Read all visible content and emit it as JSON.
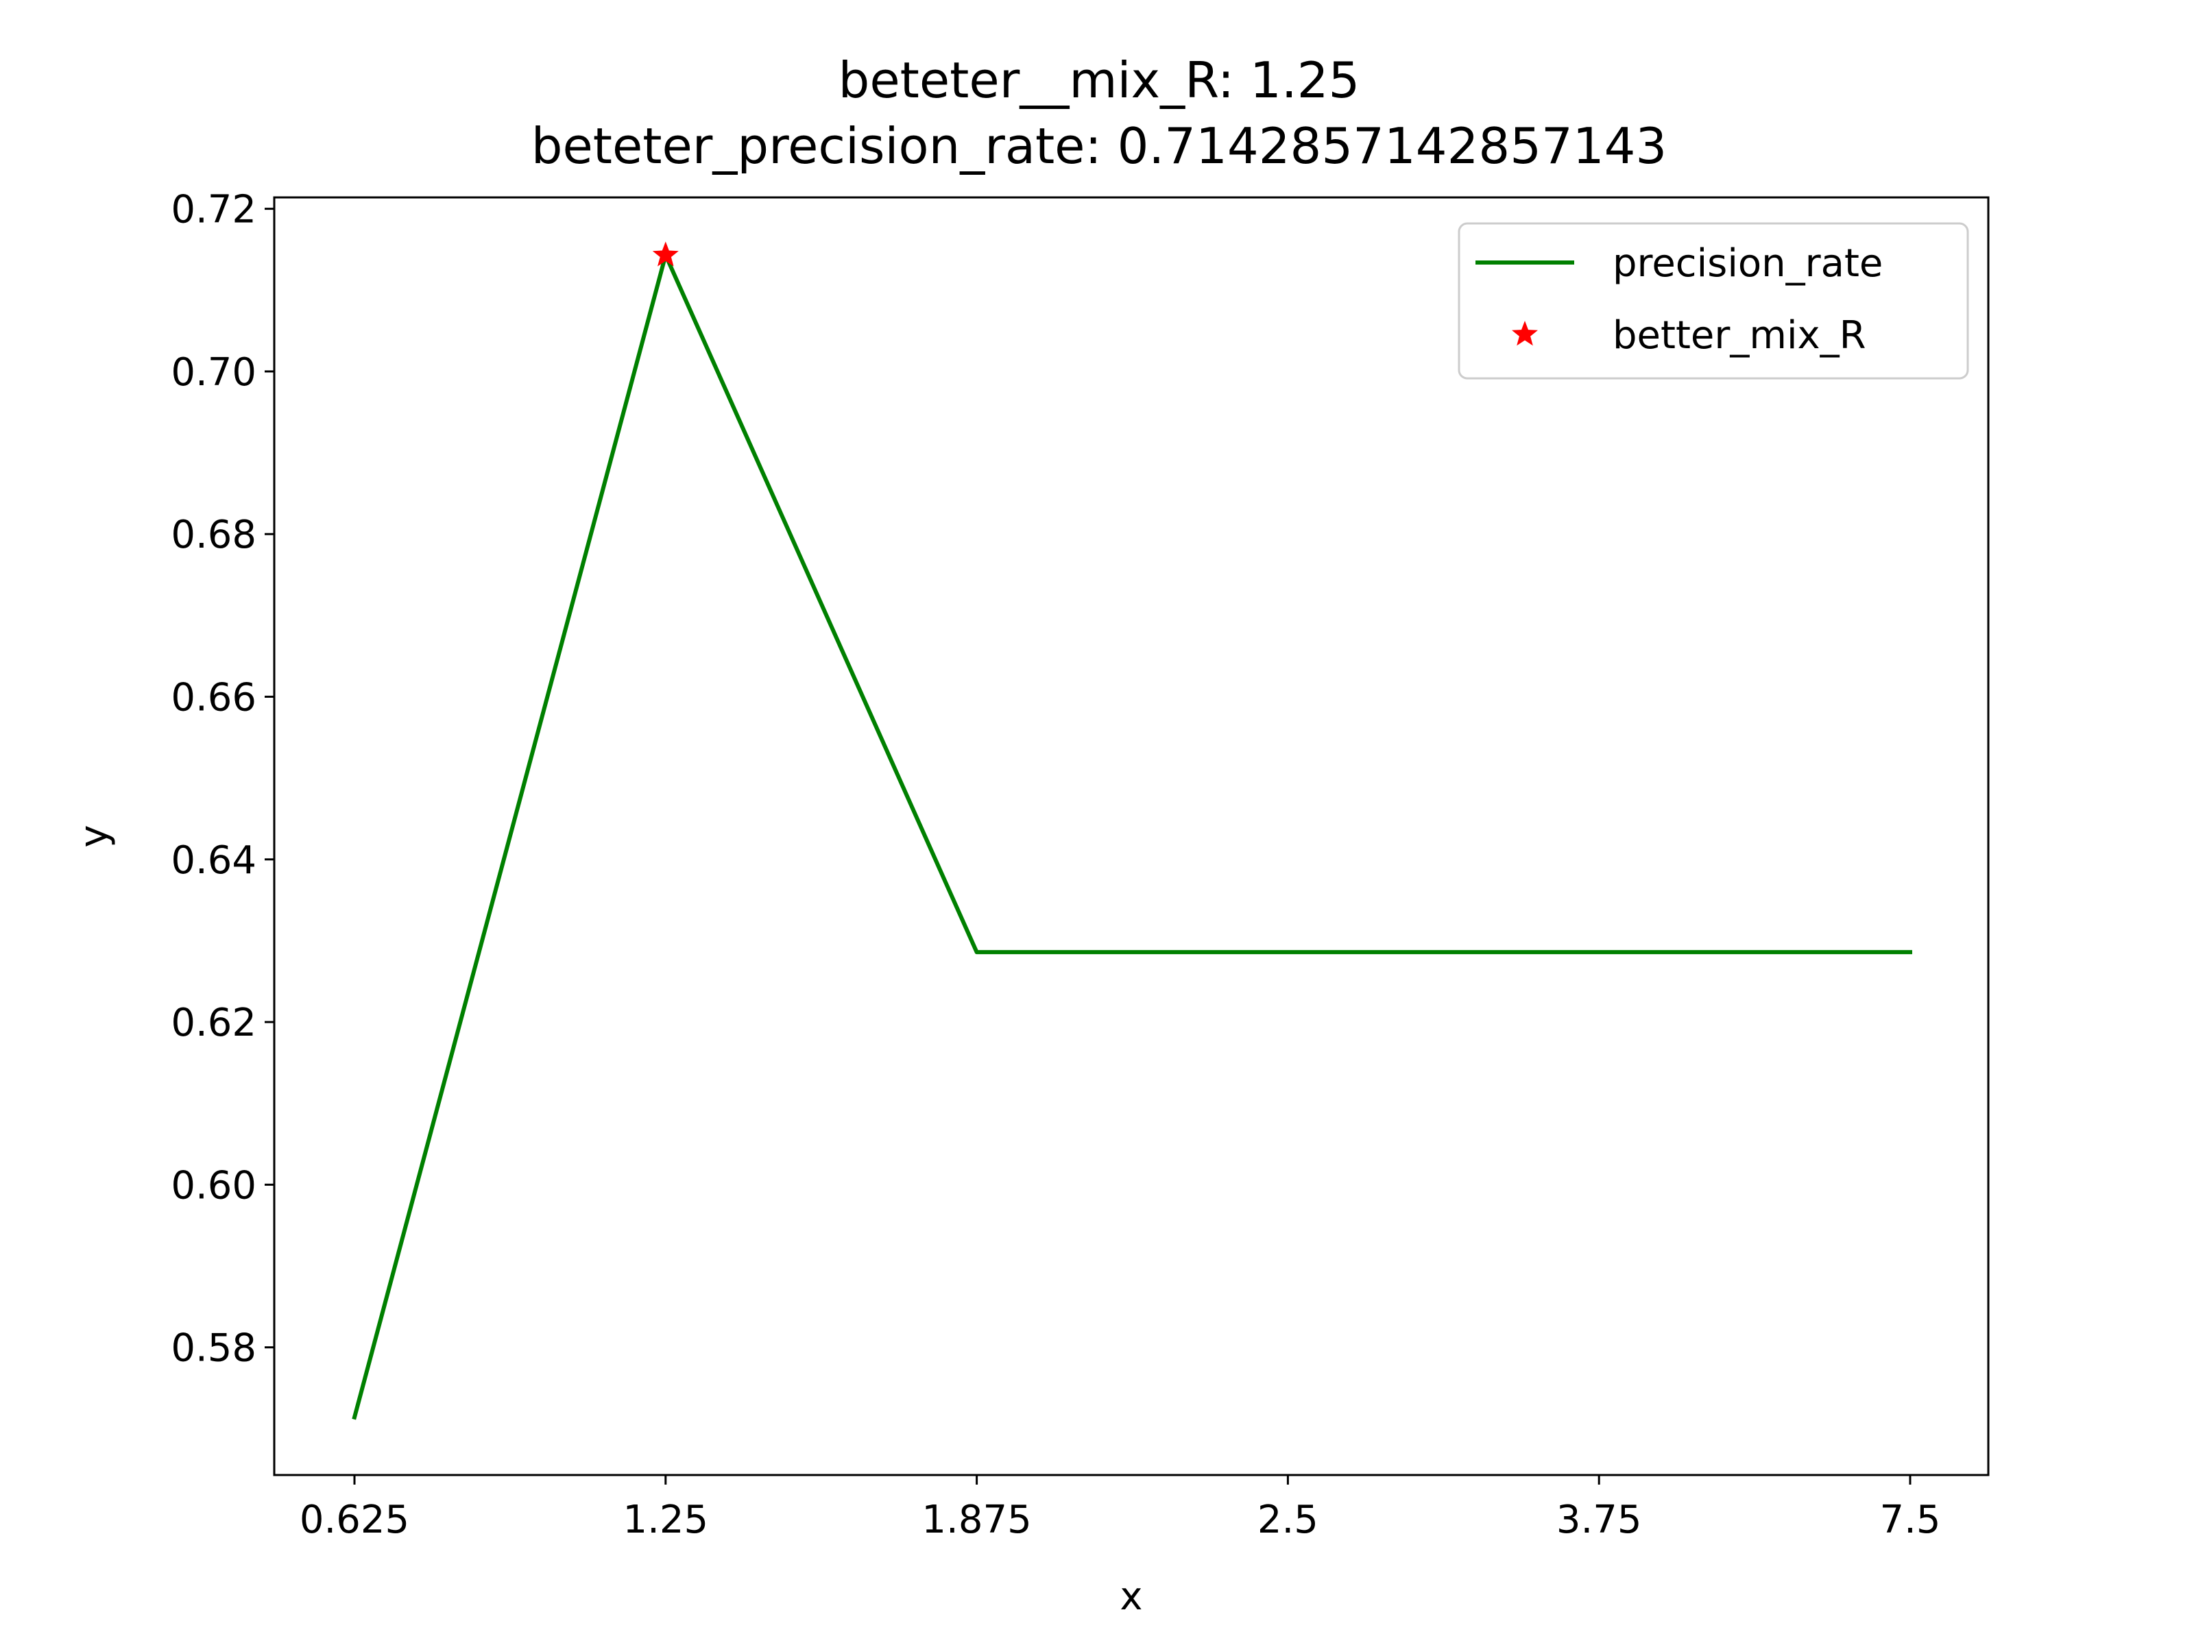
{
  "chart_data": {
    "type": "line",
    "title": "beteter__mix_R: 1.25",
    "subtitle": "beteter_precision_rate: 0.7142857142857143",
    "xlabel": "x",
    "ylabel": "y",
    "categories": [
      "0.625",
      "1.25",
      "1.875",
      "2.5",
      "3.75",
      "7.5"
    ],
    "series": [
      {
        "name": "precision_rate",
        "values": [
          0.5714,
          0.7143,
          0.6286,
          0.6286,
          0.6286,
          0.6286
        ],
        "color": "#008000"
      }
    ],
    "highlight": {
      "name": "better_mix_R",
      "x": "1.25",
      "y": 0.7142857142857143,
      "marker": "star",
      "color": "#ff0000"
    },
    "yticks": [
      "0.58",
      "0.60",
      "0.62",
      "0.64",
      "0.66",
      "0.68",
      "0.70",
      "0.72"
    ],
    "ylim": [
      0.5643,
      0.7214
    ],
    "grid": false,
    "legend_position": "top-right"
  }
}
